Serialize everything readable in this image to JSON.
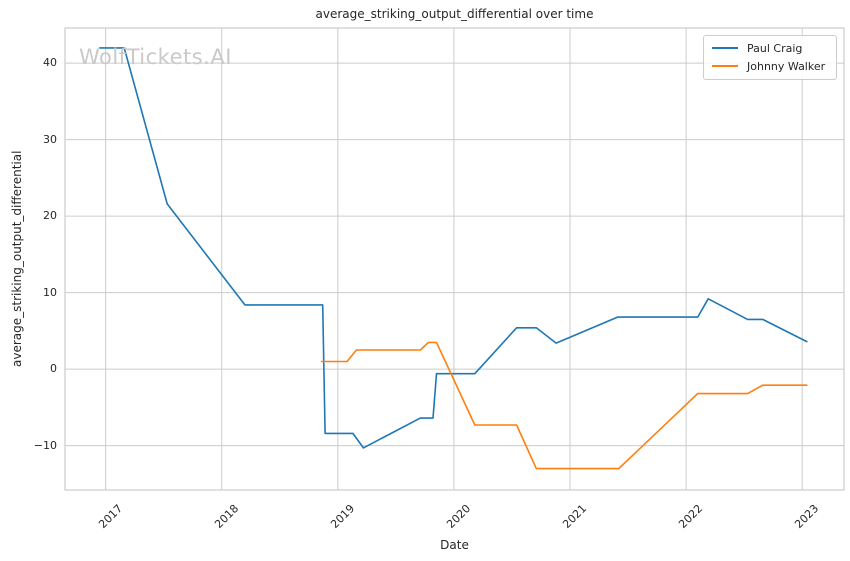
{
  "watermark": {
    "text": "WolfTickets.AI"
  },
  "chart_data": {
    "type": "line",
    "title": "average_striking_output_differential over time",
    "xlabel": "Date",
    "ylabel": "average_striking_output_differential",
    "grid": true,
    "legend_position": "upper right",
    "xlim": [
      2016.65,
      2023.36
    ],
    "ylim": [
      -15.8,
      44.6
    ],
    "xticks": [
      {
        "v": 2017,
        "label": "2017"
      },
      {
        "v": 2018,
        "label": "2018"
      },
      {
        "v": 2019,
        "label": "2019"
      },
      {
        "v": 2020,
        "label": "2020"
      },
      {
        "v": 2021,
        "label": "2021"
      },
      {
        "v": 2022,
        "label": "2022"
      },
      {
        "v": 2023,
        "label": "2023"
      }
    ],
    "yticks": [
      {
        "v": 40,
        "label": "40"
      },
      {
        "v": 30,
        "label": "30"
      },
      {
        "v": 20,
        "label": "20"
      },
      {
        "v": 10,
        "label": "10"
      },
      {
        "v": 0,
        "label": "0"
      },
      {
        "v": -10,
        "label": "−10"
      }
    ],
    "series": [
      {
        "name": "Paul Craig",
        "color": "#1f77b4",
        "points": [
          [
            2016.95,
            42.0
          ],
          [
            2017.16,
            42.0
          ],
          [
            2017.53,
            21.6
          ],
          [
            2018.2,
            8.4
          ],
          [
            2018.87,
            8.4
          ],
          [
            2018.89,
            -8.4
          ],
          [
            2019.13,
            -8.4
          ],
          [
            2019.22,
            -10.3
          ],
          [
            2019.71,
            -6.4
          ],
          [
            2019.82,
            -6.4
          ],
          [
            2019.85,
            -0.6
          ],
          [
            2020.18,
            -0.6
          ],
          [
            2020.54,
            5.4
          ],
          [
            2020.71,
            5.4
          ],
          [
            2020.88,
            3.4
          ],
          [
            2021.41,
            6.8
          ],
          [
            2022.1,
            6.8
          ],
          [
            2022.19,
            9.2
          ],
          [
            2022.53,
            6.5
          ],
          [
            2022.66,
            6.5
          ],
          [
            2023.04,
            3.6
          ]
        ]
      },
      {
        "name": "Johnny Walker",
        "color": "#ff7f0e",
        "points": [
          [
            2018.86,
            1.0
          ],
          [
            2019.08,
            1.0
          ],
          [
            2019.16,
            2.5
          ],
          [
            2019.71,
            2.5
          ],
          [
            2019.78,
            3.5
          ],
          [
            2019.85,
            3.5
          ],
          [
            2020.18,
            -7.3
          ],
          [
            2020.54,
            -7.3
          ],
          [
            2020.71,
            -13.0
          ],
          [
            2021.42,
            -13.0
          ],
          [
            2022.1,
            -3.2
          ],
          [
            2022.53,
            -3.2
          ],
          [
            2022.66,
            -2.1
          ],
          [
            2023.04,
            -2.1
          ]
        ]
      }
    ],
    "style": {
      "grid_color": "#cccccc",
      "border_color": "#cccccc",
      "text_color": "#262626",
      "watermark_color": "#c9c9c9",
      "background": "#ffffff"
    }
  }
}
